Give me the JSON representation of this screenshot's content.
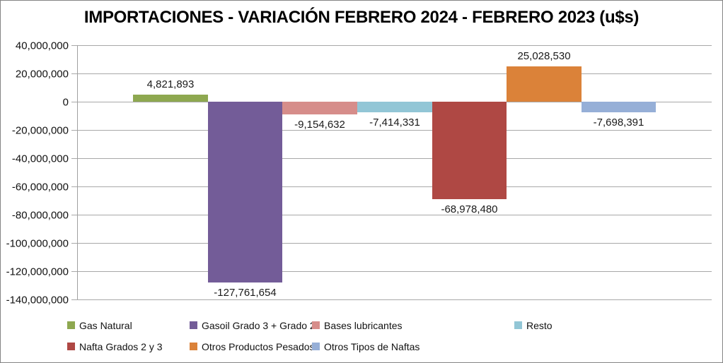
{
  "chart_data": {
    "type": "bar",
    "title": "IMPORTACIONES - VARIACIÓN FEBRERO 2024 - FEBRERO 2023 (u$s)",
    "xlabel": "",
    "ylabel": "",
    "categories": [
      "Gas Natural",
      "Gasoil Grado 3 + Grado 2",
      "Bases lubricantes",
      "Resto",
      "Nafta Grados 2 y 3",
      "Otros Productos Pesados",
      "Otros Tipos de Naftas"
    ],
    "values": [
      4821893,
      -127761654,
      -9154632,
      -7414331,
      -68978480,
      25028530,
      -7698391
    ],
    "data_labels": [
      "4,821,893",
      "-127,761,654",
      "-9,154,632",
      "-7,414,331",
      "-68,978,480",
      "25,028,530",
      "-7,698,391"
    ],
    "colors": [
      "#8EA850",
      "#735C98",
      "#D68D8A",
      "#92C6D6",
      "#AF4844",
      "#DB8239",
      "#96AFD7"
    ],
    "ylim": [
      -140000000,
      40000000
    ],
    "ytick_step": 20000000,
    "ytick_labels": [
      "40,000,000",
      "20,000,000",
      "0",
      "-20,000,000",
      "-40,000,000",
      "-60,000,000",
      "-80,000,000",
      "-100,000,000",
      "-120,000,000",
      "-140,000,000"
    ],
    "grid": true,
    "legend_position": "bottom"
  },
  "styles": {
    "gridline_color": "#a8a8a8",
    "axis_color": "#a0a0a0",
    "border_color": "#848484",
    "text_color": "#111111"
  }
}
